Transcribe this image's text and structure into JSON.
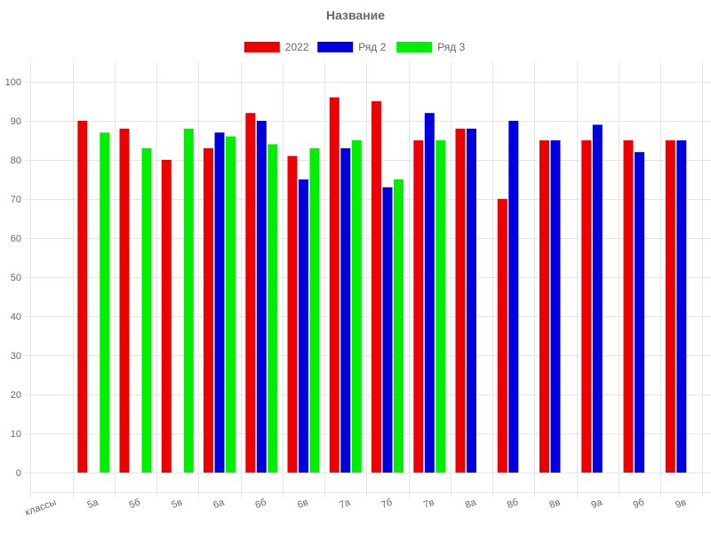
{
  "chart_data": {
    "type": "bar",
    "title": "Название",
    "xlabel": "",
    "ylabel": "",
    "categories": [
      "классы",
      "5а",
      "5б",
      "5в",
      "6а",
      "6б",
      "6в",
      "7а",
      "7б",
      "7в",
      "8а",
      "8б",
      "8в",
      "9а",
      "9б",
      "9в"
    ],
    "series": [
      {
        "name": "2022",
        "color": "#ee0000",
        "values": [
          null,
          90,
          88,
          80,
          83,
          92,
          81,
          96,
          95,
          85,
          88,
          70,
          85,
          85,
          85,
          85
        ]
      },
      {
        "name": "Ряд 2",
        "color": "#0000dd",
        "values": [
          null,
          null,
          null,
          null,
          87,
          90,
          75,
          83,
          73,
          92,
          88,
          90,
          85,
          89,
          82,
          85
        ]
      },
      {
        "name": "Ряд 3",
        "color": "#00ee00",
        "values": [
          null,
          87,
          83,
          88,
          86,
          84,
          83,
          85,
          75,
          85,
          null,
          null,
          null,
          null,
          null,
          null
        ]
      }
    ],
    "ylim": [
      0,
      100
    ],
    "y_ticks": [
      0,
      10,
      20,
      30,
      40,
      50,
      60,
      70,
      80,
      90,
      100
    ],
    "grid": true,
    "legend_position": "top"
  }
}
